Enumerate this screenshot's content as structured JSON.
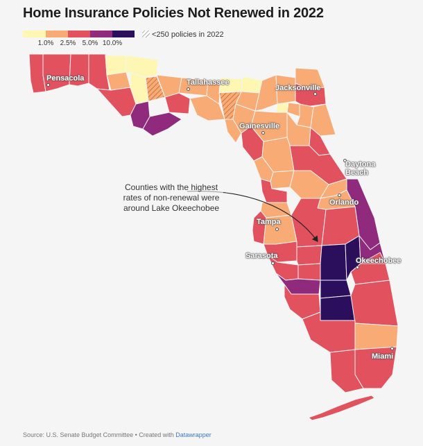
{
  "title": "Home Insurance Policies Not Renewed in 2022",
  "legend": {
    "colors": [
      "#fdf7b3",
      "#f8ab74",
      "#e1515e",
      "#8f2a7c",
      "#2c0f5c"
    ],
    "ticks": [
      "1.0%",
      "2.5%",
      "5.0%",
      "10.0%"
    ],
    "hatch_label": "<250 policies in 2022"
  },
  "cities": {
    "pensacola": "Pensacola",
    "tallahassee": "Tallahassee",
    "jacksonville": "Jacksonville",
    "gainesville": "Gainesville",
    "daytona_line1": "Daytona",
    "daytona_line2": "Beach",
    "orlando": "Orlando",
    "tampa": "Tampa",
    "sarasota": "Sarasota",
    "okeechobee": "Okeechobee",
    "miami": "Miami"
  },
  "annotation": "Counties with the highest rates of non-renewal were around Lake Okeechobee",
  "source": {
    "prefix": "Source: U.S. Senate Budget Committee • Created with ",
    "link": "Datawrapper"
  }
}
